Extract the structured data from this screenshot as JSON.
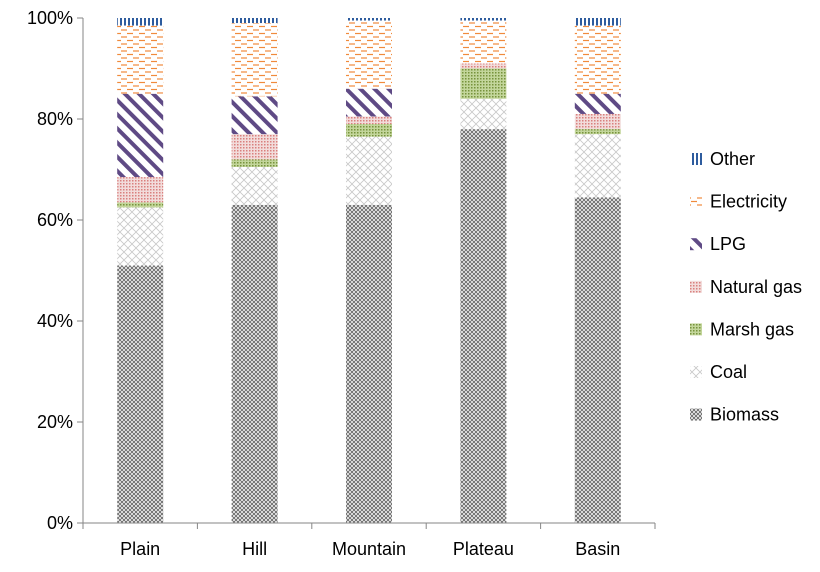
{
  "chart_data": {
    "type": "bar",
    "stacked": true,
    "percent": true,
    "categories": [
      "Plain",
      "Hill",
      "Mountain",
      "Plateau",
      "Basin"
    ],
    "series": [
      {
        "name": "Biomass",
        "color": "#7f7f7f",
        "pattern": "crosshatch-dense",
        "values": [
          51,
          63,
          63,
          78,
          64.5
        ]
      },
      {
        "name": "Coal",
        "color": "#cfcfcf",
        "pattern": "diamond-light",
        "values": [
          11.5,
          7.5,
          13.5,
          6,
          12.5
        ]
      },
      {
        "name": "Marsh gas",
        "color": "#9bbb59",
        "pattern": "dotted-grid",
        "values": [
          1,
          1.5,
          2.5,
          6,
          1
        ]
      },
      {
        "name": "Natural gas",
        "color": "#d99694",
        "pattern": "dotted-grid",
        "values": [
          5,
          5,
          1.5,
          1,
          3
        ]
      },
      {
        "name": "LPG",
        "color": "#604a7b",
        "pattern": "wide-diagonal",
        "values": [
          16.5,
          7.5,
          5.5,
          0,
          4
        ]
      },
      {
        "name": "Electricity",
        "color": "#f79646",
        "pattern": "dashed-horizontal",
        "values": [
          13.5,
          14.5,
          13.5,
          8.5,
          13.5
        ]
      },
      {
        "name": "Other",
        "color": "#4f81bd",
        "pattern": "vertical-lines",
        "values": [
          1.5,
          1,
          0.5,
          0.5,
          1.5
        ]
      }
    ],
    "y_ticks": [
      "0%",
      "20%",
      "40%",
      "60%",
      "80%",
      "100%"
    ],
    "ylim": [
      0,
      100
    ],
    "legend_position": "right",
    "legend_order": [
      "Other",
      "Electricity",
      "LPG",
      "Natural gas",
      "Marsh gas",
      "Coal",
      "Biomass"
    ],
    "grid": false
  }
}
